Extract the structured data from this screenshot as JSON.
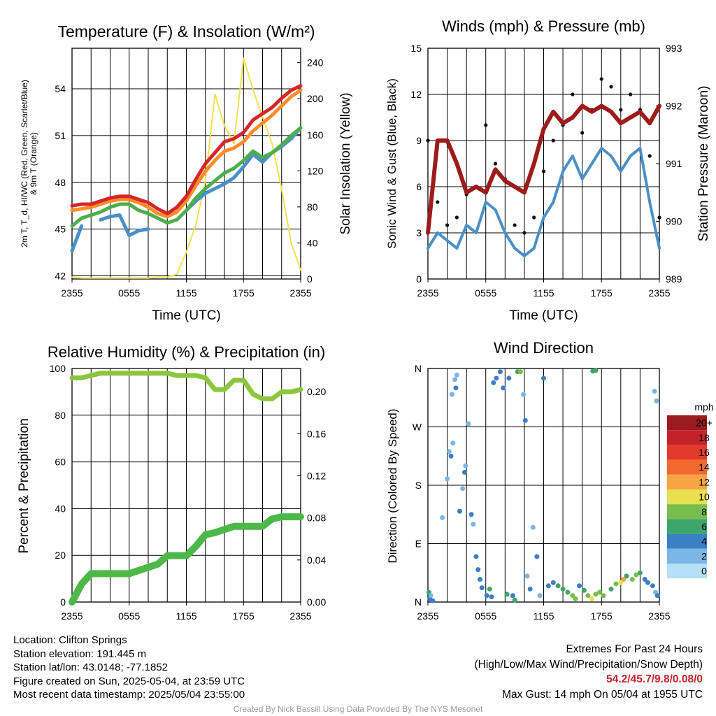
{
  "chart_data": [
    {
      "type": "line",
      "title": "Temperature (F) & Insolation (W/m²)",
      "xlabel": "Time (UTC)",
      "ylabel": "2m T, T_d, HI/WC (Red, Green, Scarlet/Blue) & 9m T (Orange)",
      "y2label": "Solar Insolation (Yellow)",
      "x_ticks": [
        "2355",
        "0555",
        "1155",
        "1755",
        "2355"
      ],
      "y_ticks": [
        "42",
        "45",
        "48",
        "51",
        "54"
      ],
      "y2_ticks": [
        "0",
        "40",
        "80",
        "120",
        "160",
        "200",
        "240"
      ],
      "ylim": [
        41.8,
        56.6
      ],
      "y2lim": [
        0,
        256
      ],
      "grid": true,
      "x_hours": [
        0,
        1,
        2,
        3,
        4,
        5,
        6,
        7,
        8,
        9,
        10,
        11,
        12,
        13,
        14,
        15,
        16,
        17,
        18,
        19,
        20,
        21,
        22,
        23,
        24
      ],
      "series": [
        {
          "color": "#d62728",
          "axis": "left",
          "values": [
            46.5,
            46.6,
            46.6,
            46.8,
            47.0,
            47.1,
            47.1,
            46.9,
            46.7,
            46.3,
            46.0,
            46.4,
            47.1,
            48.2,
            49.2,
            49.9,
            50.6,
            50.8,
            51.2,
            52.0,
            52.4,
            52.8,
            53.4,
            53.9,
            54.2
          ]
        },
        {
          "color": "#ff8c2a",
          "axis": "left",
          "values": [
            46.2,
            46.3,
            46.4,
            46.6,
            46.8,
            46.9,
            46.9,
            46.7,
            46.4,
            46.0,
            45.8,
            46.1,
            46.8,
            47.8,
            48.7,
            49.4,
            50.0,
            50.2,
            50.6,
            51.3,
            51.8,
            52.3,
            52.9,
            53.5,
            53.9
          ]
        },
        {
          "color": "#4daf4a",
          "axis": "left",
          "values": [
            45.2,
            45.7,
            45.9,
            46.1,
            46.4,
            46.6,
            46.6,
            46.2,
            46.0,
            45.7,
            45.4,
            45.6,
            46.2,
            47.0,
            47.6,
            48.1,
            48.6,
            48.9,
            49.4,
            50.0,
            49.6,
            49.9,
            50.4,
            51.0,
            51.5
          ]
        },
        {
          "color": "#4a90c8",
          "axis": "left",
          "values": [
            43.6,
            45.2,
            null,
            45.6,
            45.8,
            45.9,
            44.6,
            44.9,
            45.0,
            null,
            null,
            null,
            46.2,
            46.8,
            47.3,
            47.6,
            47.9,
            48.3,
            49.0,
            49.8,
            49.3,
            49.9,
            50.3,
            50.8,
            51.5
          ]
        },
        {
          "color": "#f5e050",
          "axis": "right",
          "values": [
            2,
            1,
            1,
            1,
            1,
            1,
            1,
            1,
            1,
            2,
            2,
            5,
            30,
            60,
            110,
            205,
            170,
            150,
            245,
            210,
            180,
            150,
            100,
            40,
            10
          ]
        }
      ]
    },
    {
      "type": "line",
      "title": "Winds (mph) & Pressure (mb)",
      "xlabel": "Time (UTC)",
      "ylabel": "Sonic Wind & Gust (Blue, Black)",
      "y2label": "Station Pressure (Maroon)",
      "x_ticks": [
        "2355",
        "0555",
        "1155",
        "1755",
        "2355"
      ],
      "y_ticks": [
        "0",
        "3",
        "6",
        "9",
        "12",
        "15"
      ],
      "y2_ticks": [
        "989",
        "990",
        "991",
        "992",
        "993"
      ],
      "ylim": [
        0,
        15
      ],
      "y2lim": [
        989,
        993
      ],
      "grid": true,
      "x_hours": [
        0,
        1,
        2,
        3,
        4,
        5,
        6,
        7,
        8,
        9,
        10,
        11,
        12,
        13,
        14,
        15,
        16,
        17,
        18,
        19,
        20,
        21,
        22,
        23,
        24
      ],
      "series": [
        {
          "color": "#9e1b1b",
          "axis": "right",
          "values": [
            989.8,
            991.4,
            991.4,
            991.0,
            990.5,
            990.6,
            990.5,
            990.9,
            990.7,
            990.6,
            990.5,
            991.0,
            991.6,
            991.9,
            991.7,
            991.8,
            992.0,
            991.9,
            992.0,
            991.9,
            991.7,
            991.8,
            991.9,
            991.7,
            992.0
          ]
        },
        {
          "color": "#4a90c8",
          "axis": "left",
          "values": [
            2.0,
            3.0,
            2.5,
            2.0,
            3.5,
            3.0,
            5.0,
            4.5,
            3.0,
            2.0,
            1.5,
            2.0,
            4.0,
            5.0,
            7.0,
            8.0,
            6.5,
            7.5,
            8.5,
            8.0,
            7.0,
            8.0,
            8.5,
            5.0,
            2.0
          ]
        },
        {
          "color": "#111111",
          "axis": "left",
          "values": [
            9.0,
            5.0,
            3.5,
            4.0,
            5.5,
            6.0,
            10.0,
            7.5,
            6.5,
            3.5,
            3.0,
            4.0,
            7.0,
            9.0,
            10.0,
            12.0,
            9.5,
            11.0,
            13.0,
            12.5,
            11.0,
            12.0,
            11.0,
            8.0,
            4.0
          ]
        }
      ]
    },
    {
      "type": "line",
      "title": "Relative Humidity (%) & Precipitation (in)",
      "ylabel": "Percent & Precipitation",
      "x_ticks": [
        "2355",
        "0555",
        "1155",
        "1755",
        "2355"
      ],
      "y_ticks": [
        "0",
        "20",
        "40",
        "60",
        "80",
        "100"
      ],
      "y2_ticks": [
        "0.00",
        "0.04",
        "0.08",
        "0.12",
        "0.16",
        "0.20"
      ],
      "ylim": [
        0,
        100
      ],
      "y2lim": [
        0,
        0.222
      ],
      "grid": true,
      "x_hours": [
        0,
        1,
        2,
        3,
        4,
        5,
        6,
        7,
        8,
        9,
        10,
        11,
        12,
        13,
        14,
        15,
        16,
        17,
        18,
        19,
        20,
        21,
        22,
        23,
        24
      ],
      "series": [
        {
          "color": "#8cc63f",
          "axis": "left",
          "values": [
            96,
            96,
            97,
            98,
            98,
            98,
            98,
            98,
            98,
            98,
            98,
            97,
            97,
            97,
            96,
            91,
            91,
            95,
            95,
            89,
            87,
            87,
            90,
            90,
            91
          ]
        },
        {
          "color": "#4cb848",
          "axis": "right",
          "values": [
            0,
            0.017,
            0.027,
            0.027,
            0.027,
            0.027,
            0.027,
            0.03,
            0.033,
            0.036,
            0.044,
            0.044,
            0.044,
            0.053,
            0.064,
            0.066,
            0.069,
            0.072,
            0.072,
            0.072,
            0.072,
            0.079,
            0.081,
            0.081,
            0.081
          ]
        }
      ]
    },
    {
      "type": "scatter",
      "title": "Wind Direction",
      "ylabel": "Direction (Colored By Speed)",
      "x_ticks": [
        "2355",
        "0555",
        "1155",
        "1755",
        "2355"
      ],
      "y_ticks": [
        "N",
        "E",
        "S",
        "W",
        "N"
      ],
      "ylim": [
        0,
        360
      ],
      "grid": true,
      "legend": {
        "title": "mph",
        "labels": [
          "20+",
          "18",
          "16",
          "14",
          "12",
          "10",
          "8",
          "6",
          "4",
          "2",
          "0"
        ],
        "colors": [
          "#9b1b1e",
          "#c4222b",
          "#e33a2c",
          "#f26a2d",
          "#f7a543",
          "#e8e050",
          "#79bd4f",
          "#3ea66b",
          "#3b7fc4",
          "#7ab6e6",
          "#b6e0f7"
        ],
        "position": "right"
      },
      "points": [
        {
          "x": 0.1,
          "y": 15,
          "speed": 6
        },
        {
          "x": 0.2,
          "y": 5,
          "speed": 3
        },
        {
          "x": 0.3,
          "y": 10,
          "speed": 2
        },
        {
          "x": 0.5,
          "y": 2,
          "speed": 4
        },
        {
          "x": 1.5,
          "y": 130,
          "speed": 2
        },
        {
          "x": 2.0,
          "y": 190,
          "speed": 1
        },
        {
          "x": 2.2,
          "y": 232,
          "speed": 2
        },
        {
          "x": 2.4,
          "y": 225,
          "speed": 3
        },
        {
          "x": 2.6,
          "y": 245,
          "speed": 1
        },
        {
          "x": 2.5,
          "y": 320,
          "speed": 2
        },
        {
          "x": 2.8,
          "y": 343,
          "speed": 2
        },
        {
          "x": 3.0,
          "y": 350,
          "speed": 2
        },
        {
          "x": 2.9,
          "y": 330,
          "speed": 3
        },
        {
          "x": 3.3,
          "y": 140,
          "speed": 3
        },
        {
          "x": 3.6,
          "y": 175,
          "speed": 2
        },
        {
          "x": 3.8,
          "y": 200,
          "speed": 3
        },
        {
          "x": 3.9,
          "y": 210,
          "speed": 2
        },
        {
          "x": 4.2,
          "y": 275,
          "speed": 1
        },
        {
          "x": 4.5,
          "y": 135,
          "speed": 3
        },
        {
          "x": 4.7,
          "y": 120,
          "speed": 2
        },
        {
          "x": 5.0,
          "y": 70,
          "speed": 4
        },
        {
          "x": 5.2,
          "y": 50,
          "speed": 3
        },
        {
          "x": 5.4,
          "y": 35,
          "speed": 3
        },
        {
          "x": 5.6,
          "y": 22,
          "speed": 4
        },
        {
          "x": 6.1,
          "y": 10,
          "speed": 4
        },
        {
          "x": 6.4,
          "y": 20,
          "speed": 6
        },
        {
          "x": 6.6,
          "y": 8,
          "speed": 4
        },
        {
          "x": 6.8,
          "y": 338,
          "speed": 3
        },
        {
          "x": 7.1,
          "y": 345,
          "speed": 4
        },
        {
          "x": 7.5,
          "y": 355,
          "speed": 4
        },
        {
          "x": 7.8,
          "y": 330,
          "speed": 3
        },
        {
          "x": 8.2,
          "y": 12,
          "speed": 5
        },
        {
          "x": 8.4,
          "y": 345,
          "speed": 4
        },
        {
          "x": 8.8,
          "y": 10,
          "speed": 4
        },
        {
          "x": 9.0,
          "y": 3,
          "speed": 5
        },
        {
          "x": 9.3,
          "y": 355,
          "speed": 6
        },
        {
          "x": 9.6,
          "y": 355,
          "speed": 7
        },
        {
          "x": 9.9,
          "y": 320,
          "speed": 2
        },
        {
          "x": 10.1,
          "y": 280,
          "speed": 3
        },
        {
          "x": 10.3,
          "y": 40,
          "speed": 2
        },
        {
          "x": 10.6,
          "y": 20,
          "speed": 3
        },
        {
          "x": 10.9,
          "y": 115,
          "speed": 2
        },
        {
          "x": 11.3,
          "y": 70,
          "speed": 3
        },
        {
          "x": 11.6,
          "y": 10,
          "speed": 2
        },
        {
          "x": 12.0,
          "y": 345,
          "speed": 3
        },
        {
          "x": 12.5,
          "y": 25,
          "speed": 4
        },
        {
          "x": 13.0,
          "y": 30,
          "speed": 4
        },
        {
          "x": 13.5,
          "y": 25,
          "speed": 5
        },
        {
          "x": 14.0,
          "y": 20,
          "speed": 6
        },
        {
          "x": 14.5,
          "y": 15,
          "speed": 5
        },
        {
          "x": 15.0,
          "y": 10,
          "speed": 8
        },
        {
          "x": 15.3,
          "y": 5,
          "speed": 8
        },
        {
          "x": 15.7,
          "y": 25,
          "speed": 4
        },
        {
          "x": 16.2,
          "y": 18,
          "speed": 6
        },
        {
          "x": 16.6,
          "y": 10,
          "speed": 7
        },
        {
          "x": 17.0,
          "y": 5,
          "speed": 9
        },
        {
          "x": 17.4,
          "y": 12,
          "speed": 7
        },
        {
          "x": 17.8,
          "y": 15,
          "speed": 7
        },
        {
          "x": 18.2,
          "y": 10,
          "speed": 8
        },
        {
          "x": 17.1,
          "y": 356,
          "speed": 5
        },
        {
          "x": 17.4,
          "y": 357,
          "speed": 6
        },
        {
          "x": 19.0,
          "y": 20,
          "speed": 5
        },
        {
          "x": 19.5,
          "y": 28,
          "speed": 8
        },
        {
          "x": 20.0,
          "y": 30,
          "speed": 10
        },
        {
          "x": 20.3,
          "y": 35,
          "speed": 11
        },
        {
          "x": 20.6,
          "y": 40,
          "speed": 6
        },
        {
          "x": 21.2,
          "y": 35,
          "speed": 8
        },
        {
          "x": 21.6,
          "y": 42,
          "speed": 7
        },
        {
          "x": 22.0,
          "y": 45,
          "speed": 6
        },
        {
          "x": 22.5,
          "y": 35,
          "speed": 4
        },
        {
          "x": 22.8,
          "y": 30,
          "speed": 3
        },
        {
          "x": 23.3,
          "y": 25,
          "speed": 3
        },
        {
          "x": 23.6,
          "y": 15,
          "speed": 2
        },
        {
          "x": 23.8,
          "y": 10,
          "speed": 4
        },
        {
          "x": 23.5,
          "y": 325,
          "speed": 2
        },
        {
          "x": 23.7,
          "y": 310,
          "speed": 1
        }
      ]
    }
  ],
  "footer": {
    "location": "Location: Clifton Springs",
    "elevation": "Station elevation: 191.445 m",
    "latlon": "Station lat/lon: 43.0148; -77.1852",
    "created": "Figure created on Sun, 2025-05-04, at 23:59 UTC",
    "recent": "Most recent data timestamp: 2025/05/04 23:55:00",
    "extremes_title": "Extremes For Past 24 Hours",
    "extremes_sub": "(High/Low/Max Wind/Precipitation/Snow Depth)",
    "extremes_values": "54.2/45.7/9.8/0.08/0",
    "max_gust": "Max Gust: 14 mph On 05/04 at 1955 UTC",
    "credit": "Created By Nick Bassill Using Data Provided By The NYS Mesonet"
  }
}
